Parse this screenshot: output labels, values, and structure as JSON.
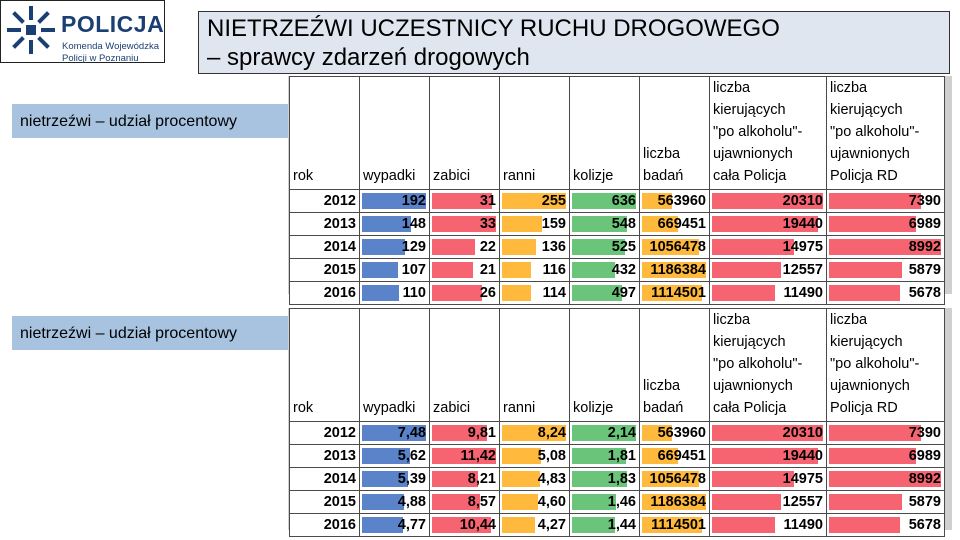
{
  "logo": {
    "word": "POLICJA",
    "sub1": "Komenda Wojewódzka",
    "sub2": "Policji w Poznaniu"
  },
  "title": {
    "line1": "NIETRZEŹWI UCZESTNICY RUCHU DROGOWEGO",
    "line2": "– sprawcy zdarzeń drogowych"
  },
  "sections": [
    {
      "label": "nietrzeźwi – udział procentowy"
    },
    {
      "label": "nietrzeźwi – udział procentowy"
    }
  ],
  "headers": {
    "rok": "rok",
    "wypadki": "wypadki",
    "zabici": "zabici",
    "ranni": "ranni",
    "kolizje": "kolizje",
    "badan": [
      "liczba",
      "badań"
    ],
    "cala": [
      "liczba",
      "kierujących",
      "\"po alkoholu\"-",
      "ujawnionych",
      "cała Policja"
    ],
    "rd": [
      "liczba",
      "kierujących",
      "\"po alkoholu\"-",
      "ujawnionych",
      "Policja RD"
    ]
  },
  "table1": [
    {
      "rok": "2012",
      "wypadki": "192",
      "zabici": "31",
      "ranni": "255",
      "kolizje": "636",
      "badan": "563960",
      "cala": "20310",
      "rd": "7390"
    },
    {
      "rok": "2013",
      "wypadki": "148",
      "zabici": "33",
      "ranni": "159",
      "kolizje": "548",
      "badan": "669451",
      "cala": "19440",
      "rd": "6989"
    },
    {
      "rok": "2014",
      "wypadki": "129",
      "zabici": "22",
      "ranni": "136",
      "kolizje": "525",
      "badan": "1056478",
      "cala": "14975",
      "rd": "8992"
    },
    {
      "rok": "2015",
      "wypadki": "107",
      "zabici": "21",
      "ranni": "116",
      "kolizje": "432",
      "badan": "1186384",
      "cala": "12557",
      "rd": "5879"
    },
    {
      "rok": "2016",
      "wypadki": "110",
      "zabici": "26",
      "ranni": "114",
      "kolizje": "497",
      "badan": "1114501",
      "cala": "11490",
      "rd": "5678"
    }
  ],
  "table2": [
    {
      "rok": "2012",
      "wypadki": "7,48",
      "zabici": "9,81",
      "ranni": "8,24",
      "kolizje": "2,14",
      "badan": "563960",
      "cala": "20310",
      "rd": "7390"
    },
    {
      "rok": "2013",
      "wypadki": "5,62",
      "zabici": "11,42",
      "ranni": "5,08",
      "kolizje": "1,81",
      "badan": "669451",
      "cala": "19440",
      "rd": "6989"
    },
    {
      "rok": "2014",
      "wypadki": "5,39",
      "zabici": "8,21",
      "ranni": "4,83",
      "kolizje": "1,83",
      "badan": "1056478",
      "cala": "14975",
      "rd": "8992"
    },
    {
      "rok": "2015",
      "wypadki": "4,88",
      "zabici": "8,57",
      "ranni": "4,60",
      "kolizje": "1,46",
      "badan": "1186384",
      "cala": "12557",
      "rd": "5879"
    },
    {
      "rok": "2016",
      "wypadki": "4,77",
      "zabici": "10,44",
      "ranni": "4,27",
      "kolizje": "1,44",
      "badan": "1114501",
      "cala": "11490",
      "rd": "5678"
    }
  ],
  "bar_colors": {
    "wypadki": "#5b83c9",
    "zabici": "#f56470",
    "ranni": "#ffba3d",
    "kolizje": "#6ac57a",
    "badan": "#ffba3d",
    "cala": "#f56470",
    "rd": "#f56470"
  }
}
